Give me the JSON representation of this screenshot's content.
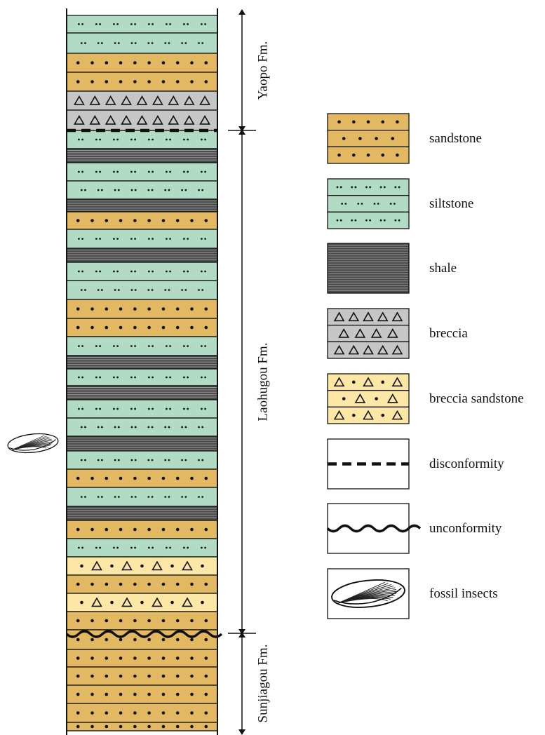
{
  "formations": [
    {
      "label": "Yaopo Fm."
    },
    {
      "label": "Laohugou Fm."
    },
    {
      "label": "Sunjiagou Fm."
    }
  ],
  "legend": [
    {
      "label": "sandstone"
    },
    {
      "label": "siltstone"
    },
    {
      "label": "shale"
    },
    {
      "label": "breccia"
    },
    {
      "label": "breccia sandstone"
    },
    {
      "label": "disconformity"
    },
    {
      "label": "unconformity"
    },
    {
      "label": "fossil insects"
    }
  ]
}
